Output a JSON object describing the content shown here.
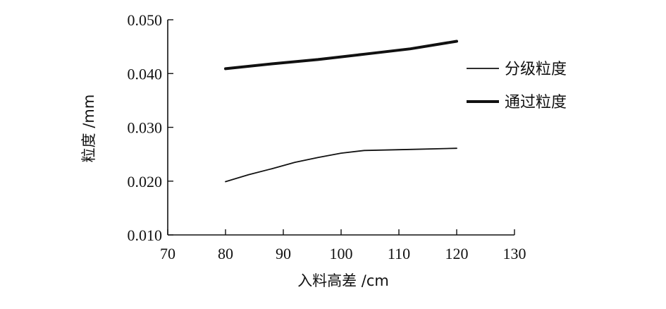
{
  "chart_data": {
    "type": "line",
    "xlabel": "入料高差 /cm",
    "ylabel": "粒度 /mm",
    "xlim": [
      70,
      130
    ],
    "ylim": [
      0.01,
      0.05
    ],
    "xticks": [
      "70",
      "80",
      "90",
      "100",
      "110",
      "120",
      "130"
    ],
    "yticks": [
      "0.010",
      "0.020",
      "0.030",
      "0.040",
      "0.050"
    ],
    "grid": false,
    "legend_position": "right",
    "series": [
      {
        "name": "分级粒度",
        "line_weight": "thin",
        "x": [
          80,
          84,
          88,
          92,
          96,
          100,
          104,
          112,
          120
        ],
        "y": [
          0.0199,
          0.0212,
          0.0223,
          0.0235,
          0.0244,
          0.0252,
          0.0257,
          0.0259,
          0.0261
        ]
      },
      {
        "name": "通过粒度",
        "line_weight": "thick",
        "x": [
          80,
          88,
          96,
          104,
          112,
          120
        ],
        "y": [
          0.0409,
          0.0418,
          0.0426,
          0.0436,
          0.0446,
          0.046
        ]
      }
    ]
  }
}
